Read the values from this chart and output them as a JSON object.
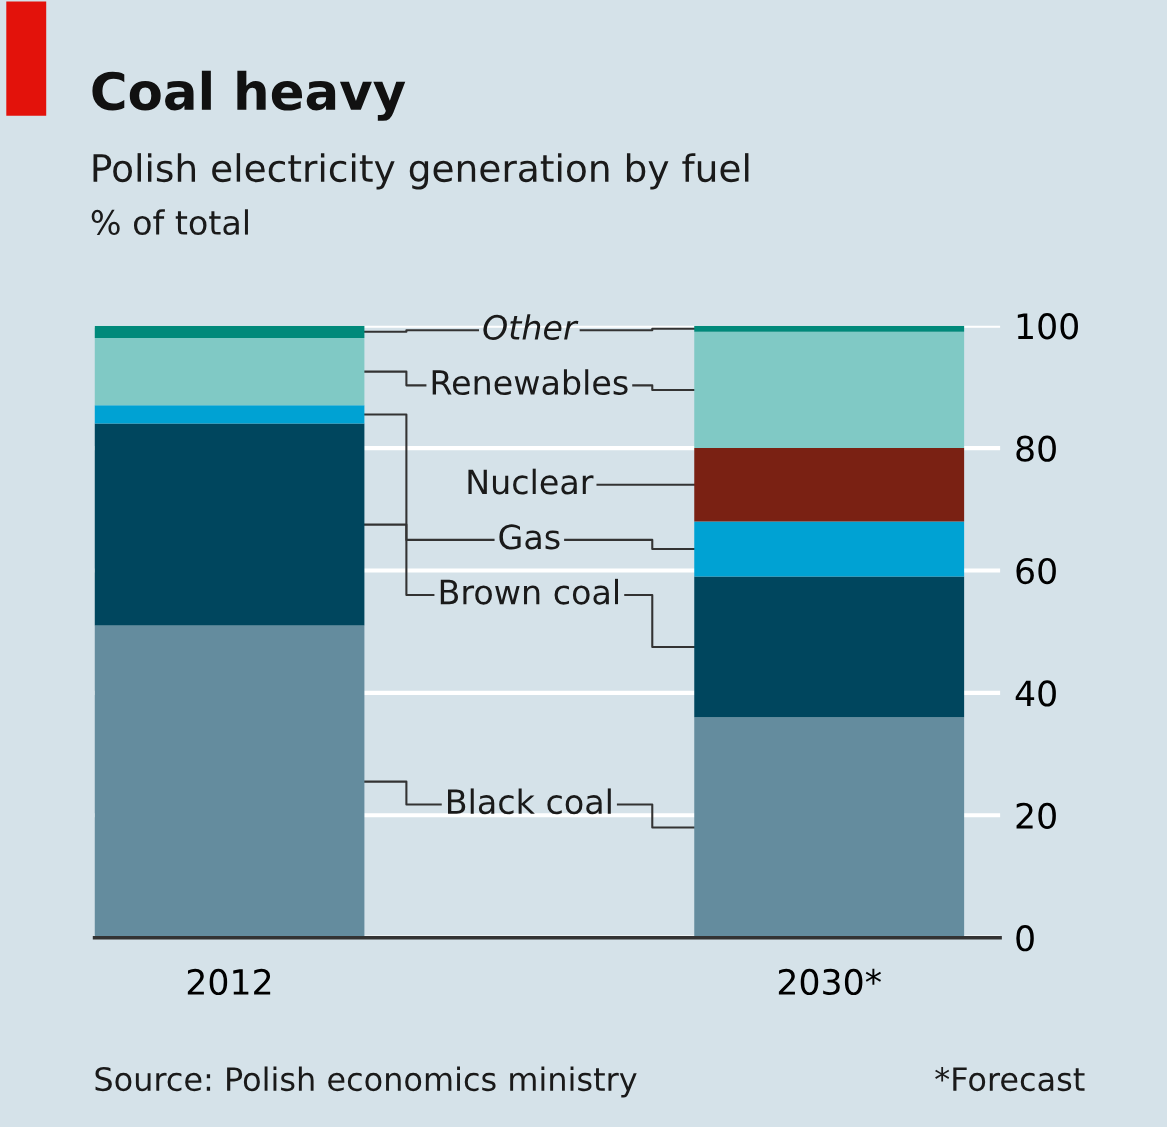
{
  "chart_data": {
    "type": "bar",
    "stacked": true,
    "title": "Coal heavy",
    "subtitle": "Polish electricity generation by fuel",
    "ylabel": "% of total",
    "categories": [
      "2012",
      "2030*"
    ],
    "series": [
      {
        "name": "Black coal",
        "color": "#648c9e",
        "values": [
          51,
          36
        ]
      },
      {
        "name": "Brown coal",
        "color": "#00465e",
        "values": [
          33,
          23
        ]
      },
      {
        "name": "Gas",
        "color": "#00a2d3",
        "values": [
          3,
          9
        ]
      },
      {
        "name": "Nuclear",
        "color": "#7a2113",
        "values": [
          null,
          12
        ]
      },
      {
        "name": "Renewables",
        "color": "#80c9c5",
        "values": [
          11,
          19
        ]
      },
      {
        "name": "Other",
        "color": "#00897a",
        "values": [
          2,
          1
        ]
      }
    ],
    "ylim": [
      0,
      100
    ],
    "yticks": [
      0,
      20,
      40,
      60,
      80,
      100
    ],
    "grid": "y",
    "legend": false,
    "annotations": [
      "Source: Polish economics ministry",
      "*Forecast"
    ]
  }
}
